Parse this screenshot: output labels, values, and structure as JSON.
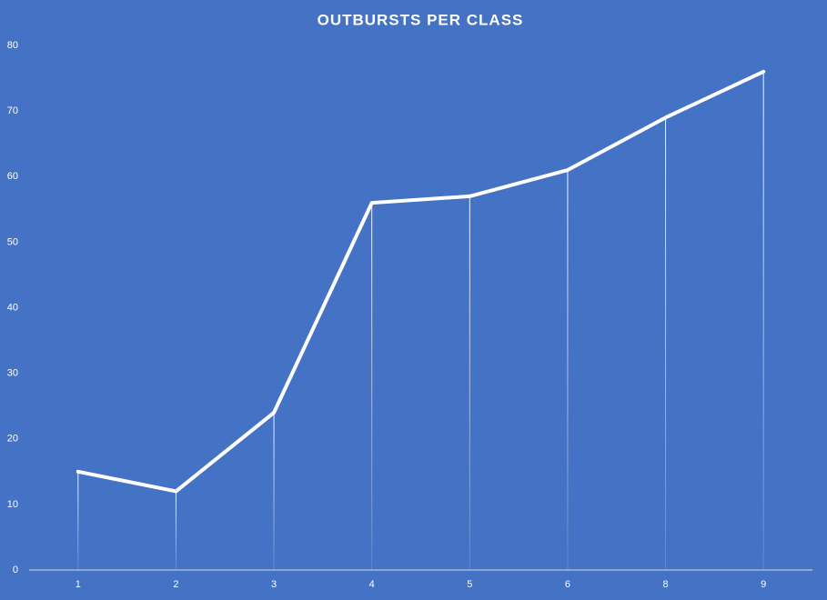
{
  "chart_data": {
    "type": "line",
    "title": "OUTBURSTS PER CLASS",
    "categories": [
      "1",
      "2",
      "3",
      "4",
      "5",
      "6",
      "8",
      "9"
    ],
    "values": [
      15,
      12,
      24,
      56,
      57,
      61,
      69,
      76
    ],
    "color": "#ffffff",
    "ylim": [
      0,
      80
    ],
    "yticks": [
      0,
      10,
      20,
      30,
      40,
      50,
      60,
      70,
      80
    ],
    "grid": false,
    "drop_lines": true
  }
}
